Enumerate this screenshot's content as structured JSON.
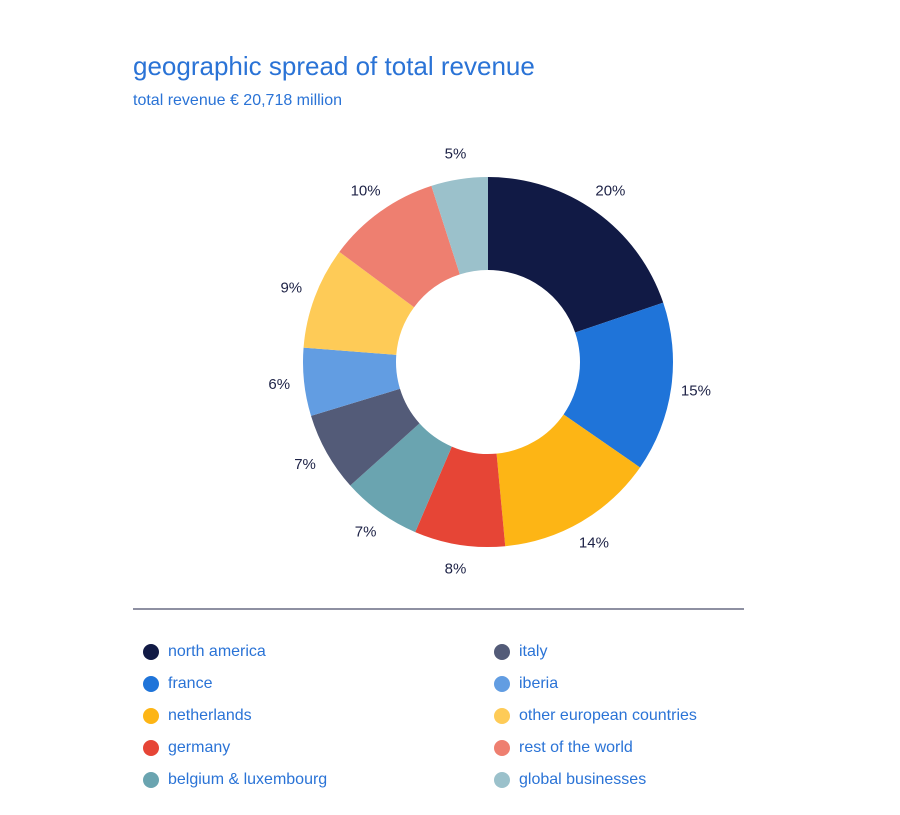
{
  "chart_data": {
    "type": "donut",
    "title": "geographic spread of total revenue",
    "subtitle": "total revenue € 20,718 million",
    "categories": [
      "north america",
      "france",
      "netherlands",
      "germany",
      "belgium & luxembourg",
      "italy",
      "iberia",
      "other european countries",
      "rest of the world",
      "global businesses"
    ],
    "values": [
      20,
      15,
      14,
      8,
      7,
      7,
      6,
      9,
      10,
      5
    ],
    "value_labels": [
      "20%",
      "15%",
      "14%",
      "8%",
      "7%",
      "7%",
      "6%",
      "9%",
      "10%",
      "5%"
    ],
    "colors": [
      "#111a45",
      "#1f74d9",
      "#fdb515",
      "#e64536",
      "#6aa4b0",
      "#535b78",
      "#629de2",
      "#fecb57",
      "#ee7f70",
      "#9bc1cb"
    ]
  }
}
